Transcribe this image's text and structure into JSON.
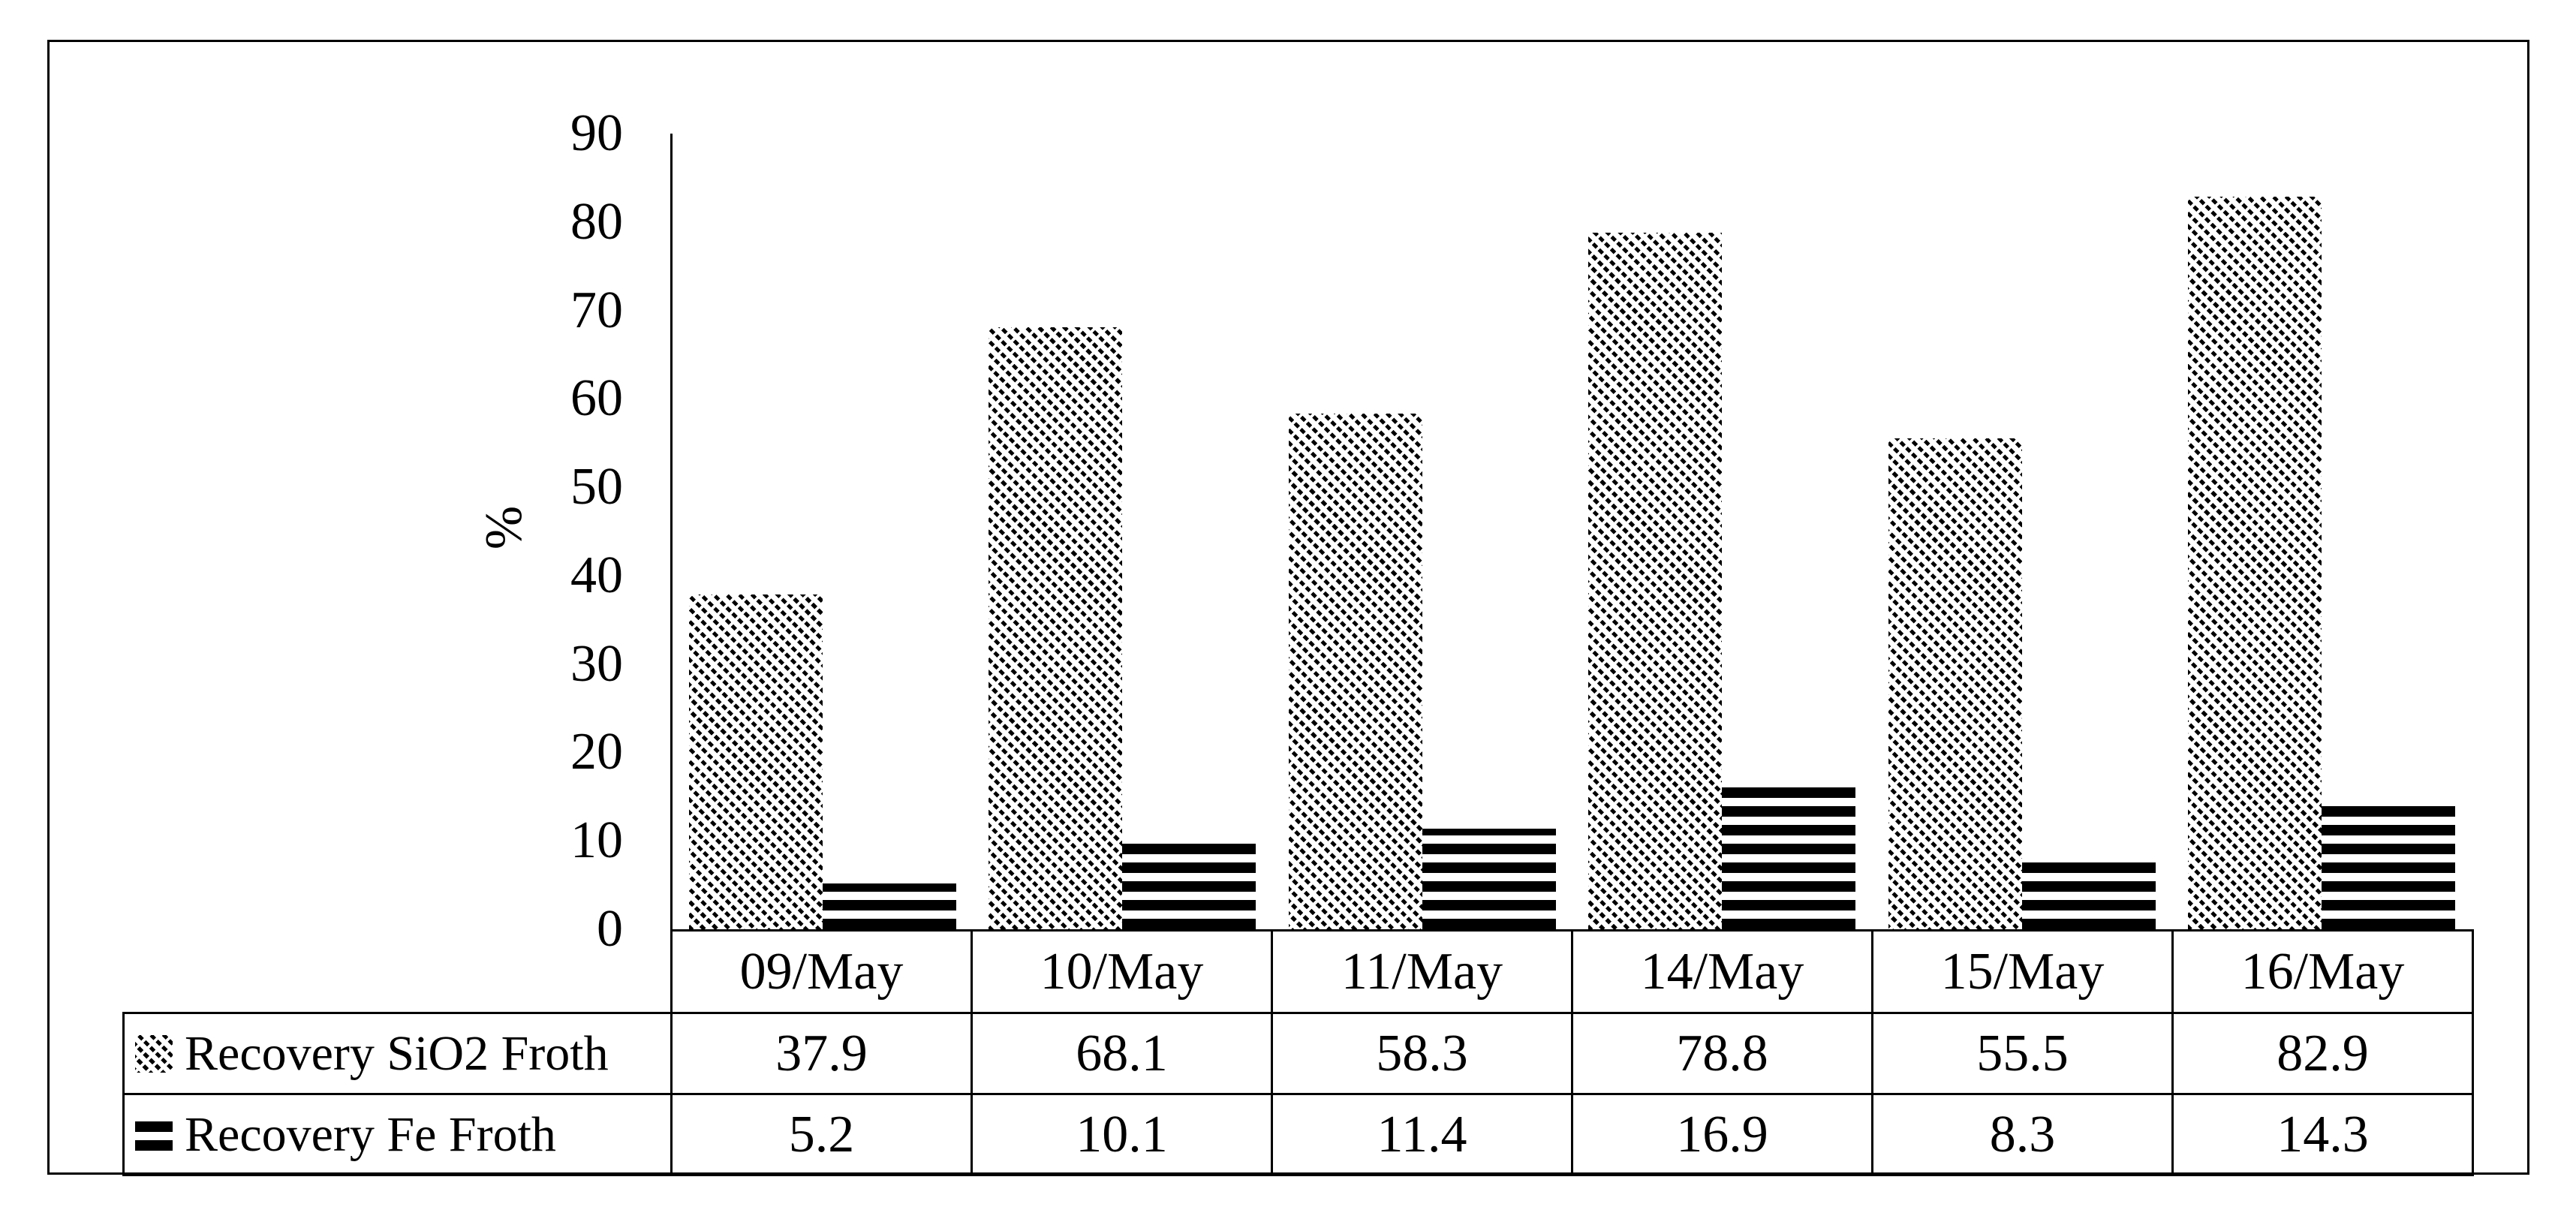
{
  "figure": {
    "background": "#ffffff",
    "border_color": "#000000",
    "text_color": "#000000"
  },
  "chart_data": {
    "type": "bar",
    "title": "",
    "xlabel": "",
    "ylabel": "%",
    "categories": [
      "09/May",
      "10/May",
      "11/May",
      "14/May",
      "15/May",
      "16/May"
    ],
    "series": [
      {
        "name": "Recovery SiO2 Froth",
        "pattern": "dashed-diagonal-hatch",
        "color": "#000000",
        "values": [
          37.9,
          68.1,
          58.3,
          78.8,
          55.5,
          82.9
        ]
      },
      {
        "name": "Recovery Fe Froth",
        "pattern": "horizontal-stripes",
        "color": "#000000",
        "values": [
          5.2,
          10.1,
          11.4,
          16.9,
          8.3,
          14.3
        ]
      }
    ],
    "ylim": [
      0,
      90
    ],
    "yticks": [
      90,
      80,
      70,
      60,
      50,
      40,
      30,
      20,
      10,
      0
    ],
    "grid": false,
    "legend_position": "data-table-left-column",
    "data_table_shown": true
  }
}
